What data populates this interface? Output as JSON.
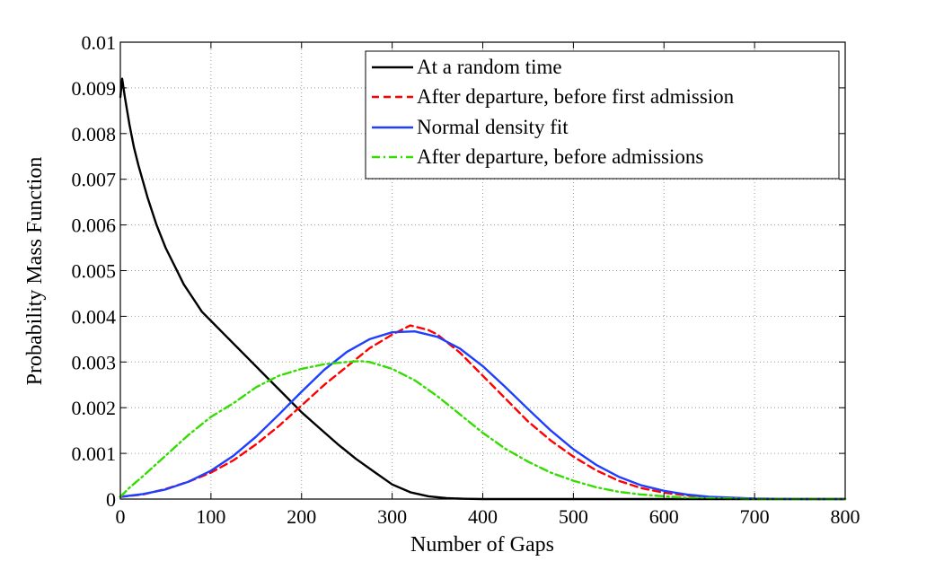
{
  "chart_data": {
    "type": "line",
    "title": "",
    "xlabel": "Number of Gaps",
    "ylabel": "Probability Mass Function",
    "xlim": [
      0,
      800
    ],
    "ylim": [
      0,
      0.01
    ],
    "grid": true,
    "legend_position": "top-right",
    "x_ticks": [
      "0",
      "100",
      "200",
      "300",
      "400",
      "500",
      "600",
      "700",
      "800"
    ],
    "y_ticks": [
      "0",
      "0.001",
      "0.002",
      "0.003",
      "0.004",
      "0.005",
      "0.006",
      "0.007",
      "0.008",
      "0.009",
      "0.01"
    ],
    "series": [
      {
        "name": "At a random time",
        "color": "#000000",
        "dash": "solid",
        "x": [
          0,
          2,
          5,
          10,
          15,
          20,
          30,
          40,
          50,
          60,
          70,
          80,
          90,
          100,
          120,
          140,
          160,
          180,
          200,
          220,
          240,
          260,
          280,
          300,
          320,
          340,
          360,
          380,
          400,
          450,
          500,
          600,
          700,
          800
        ],
        "y": [
          0.0088,
          0.0092,
          0.0088,
          0.0082,
          0.0077,
          0.0073,
          0.0066,
          0.006,
          0.0055,
          0.0051,
          0.0047,
          0.0044,
          0.0041,
          0.0039,
          0.0035,
          0.0031,
          0.0027,
          0.0023,
          0.0019,
          0.00155,
          0.0012,
          0.00088,
          0.0006,
          0.00032,
          0.00015,
          6e-05,
          2e-05,
          5e-06,
          0.0,
          0.0,
          0.0,
          0.0,
          0.0,
          0.0
        ]
      },
      {
        "name": "After departure, before first admission",
        "color": "#ff0000",
        "dash": "dashed",
        "x": [
          0,
          25,
          50,
          75,
          100,
          125,
          150,
          175,
          200,
          225,
          250,
          275,
          300,
          310,
          320,
          330,
          340,
          350,
          375,
          400,
          425,
          450,
          475,
          500,
          525,
          550,
          575,
          600,
          625,
          650,
          700,
          750,
          800
        ],
        "y": [
          5e-05,
          0.0001,
          0.00022,
          0.00038,
          0.00058,
          0.00085,
          0.0012,
          0.0016,
          0.00205,
          0.0025,
          0.0029,
          0.0033,
          0.0036,
          0.0037,
          0.0038,
          0.00375,
          0.0037,
          0.0036,
          0.0032,
          0.0027,
          0.0022,
          0.0017,
          0.00128,
          0.00093,
          0.00063,
          0.0004,
          0.00024,
          0.00014,
          8e-05,
          4e-05,
          1e-05,
          0.0,
          0.0
        ]
      },
      {
        "name": "Normal density fit",
        "color": "#1f3fff",
        "dash": "solid",
        "x": [
          0,
          25,
          50,
          75,
          100,
          125,
          150,
          175,
          200,
          225,
          250,
          275,
          300,
          325,
          350,
          375,
          400,
          425,
          450,
          475,
          500,
          525,
          550,
          575,
          600,
          625,
          650,
          700,
          750,
          800
        ],
        "y": [
          5e-05,
          0.00011,
          0.00021,
          0.00038,
          0.00062,
          0.00095,
          0.00137,
          0.00185,
          0.00235,
          0.00283,
          0.00322,
          0.0035,
          0.00365,
          0.00367,
          0.00355,
          0.00329,
          0.00291,
          0.00245,
          0.00197,
          0.0015,
          0.00109,
          0.00075,
          0.00049,
          0.0003,
          0.00018,
          0.0001,
          5e-05,
          1e-05,
          0.0,
          0.0
        ]
      },
      {
        "name": "After departure, before admissions",
        "color": "#33dd00",
        "dash": "dashdot",
        "x": [
          0,
          10,
          25,
          50,
          75,
          100,
          125,
          150,
          175,
          200,
          225,
          250,
          265,
          275,
          300,
          325,
          350,
          375,
          400,
          425,
          450,
          475,
          500,
          525,
          550,
          575,
          600,
          625,
          650,
          700,
          750,
          800
        ],
        "y": [
          5e-05,
          0.00025,
          0.0005,
          0.00095,
          0.0014,
          0.0018,
          0.0021,
          0.00245,
          0.0027,
          0.00285,
          0.00295,
          0.003,
          0.00302,
          0.003,
          0.00285,
          0.0026,
          0.00225,
          0.00185,
          0.00145,
          0.0011,
          0.00082,
          0.00058,
          0.0004,
          0.00026,
          0.00016,
          0.0001,
          6e-05,
          3e-05,
          2e-05,
          0.0,
          0.0,
          0.0
        ]
      }
    ]
  }
}
